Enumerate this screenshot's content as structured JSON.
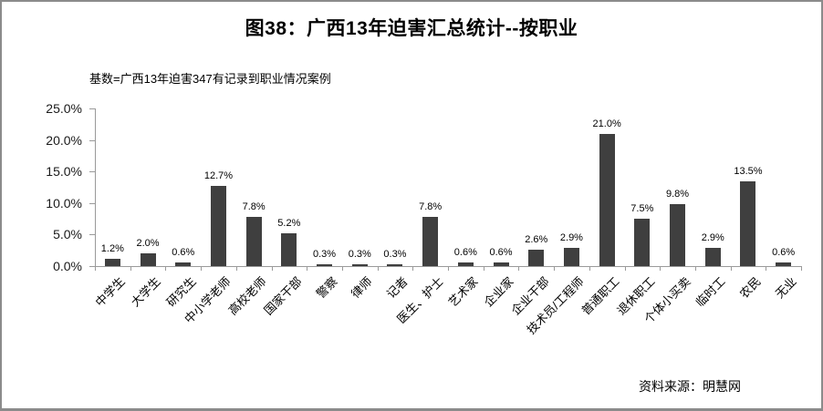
{
  "colors": {
    "bar": "#3f3f3f",
    "axis": "#9a9a9a",
    "frame_border": "#8b8b8b",
    "text": "#000000"
  },
  "chart_data": {
    "type": "bar",
    "title": "图38：广西13年迫害汇总统计--按职业",
    "subtitle": "基数=广西13年迫害347有记录到职业情况案例",
    "source": "资料来源：明慧网",
    "categories": [
      "中学生",
      "大学生",
      "研究生",
      "中小学老师",
      "高校老师",
      "国家干部",
      "警察",
      "律师",
      "记者",
      "医生、护士",
      "艺术家",
      "企业家",
      "企业干部",
      "技术员/工程师",
      "普通职工",
      "退休职工",
      "个体小买卖",
      "临时工",
      "农民",
      "无业"
    ],
    "values": [
      1.2,
      2.0,
      0.6,
      12.7,
      7.8,
      5.2,
      0.3,
      0.3,
      0.3,
      7.8,
      0.6,
      0.6,
      2.6,
      2.9,
      21.0,
      7.5,
      9.8,
      2.9,
      13.5,
      0.6
    ],
    "value_labels": [
      "1.2%",
      "2.0%",
      "0.6%",
      "12.7%",
      "7.8%",
      "5.2%",
      "0.3%",
      "0.3%",
      "0.3%",
      "7.8%",
      "0.6%",
      "0.6%",
      "2.6%",
      "2.9%",
      "21.0%",
      "7.5%",
      "9.8%",
      "2.9%",
      "13.5%",
      "0.6%"
    ],
    "ylim": [
      0,
      25
    ],
    "ytick_step": 5,
    "ytick_labels": [
      "0.0%",
      "5.0%",
      "10.0%",
      "15.0%",
      "20.0%",
      "25.0%"
    ],
    "grid": false,
    "legend": false,
    "xlabel": "",
    "ylabel": ""
  }
}
